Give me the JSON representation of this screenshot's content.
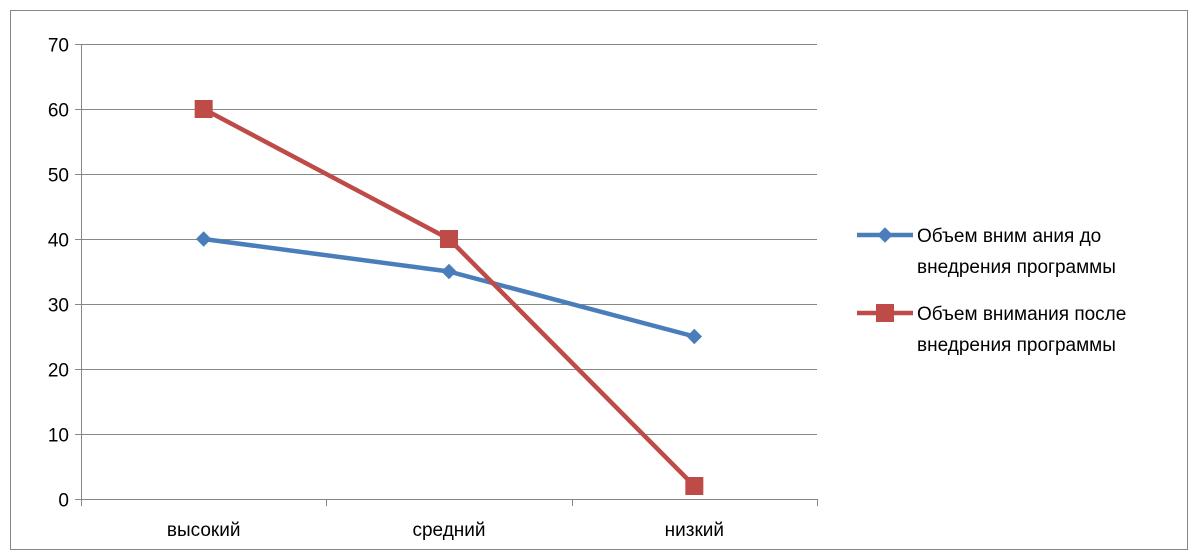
{
  "chart_data": {
    "type": "line",
    "categories": [
      "высокий",
      "средний",
      "низкий"
    ],
    "series": [
      {
        "name": "Объем вним ания до внедрения программы",
        "name_lines": [
          "Объем вним ания до",
          "внедрения программы"
        ],
        "values": [
          40,
          35,
          25
        ],
        "color": "#4A7EBB",
        "marker": "diamond"
      },
      {
        "name": "Объем внимания после внедрения программы",
        "name_lines": [
          "Объем внимания после",
          "внедрения программы"
        ],
        "values": [
          60,
          40,
          2
        ],
        "color": "#BE4B48",
        "marker": "square"
      }
    ],
    "ylim": [
      0,
      70
    ],
    "yticks": [
      0,
      10,
      20,
      30,
      40,
      50,
      60,
      70
    ],
    "title": "",
    "xlabel": "",
    "ylabel": "",
    "grid": true,
    "legend_position": "right",
    "colors": {
      "gridline": "#868686",
      "axis": "#868686"
    }
  }
}
